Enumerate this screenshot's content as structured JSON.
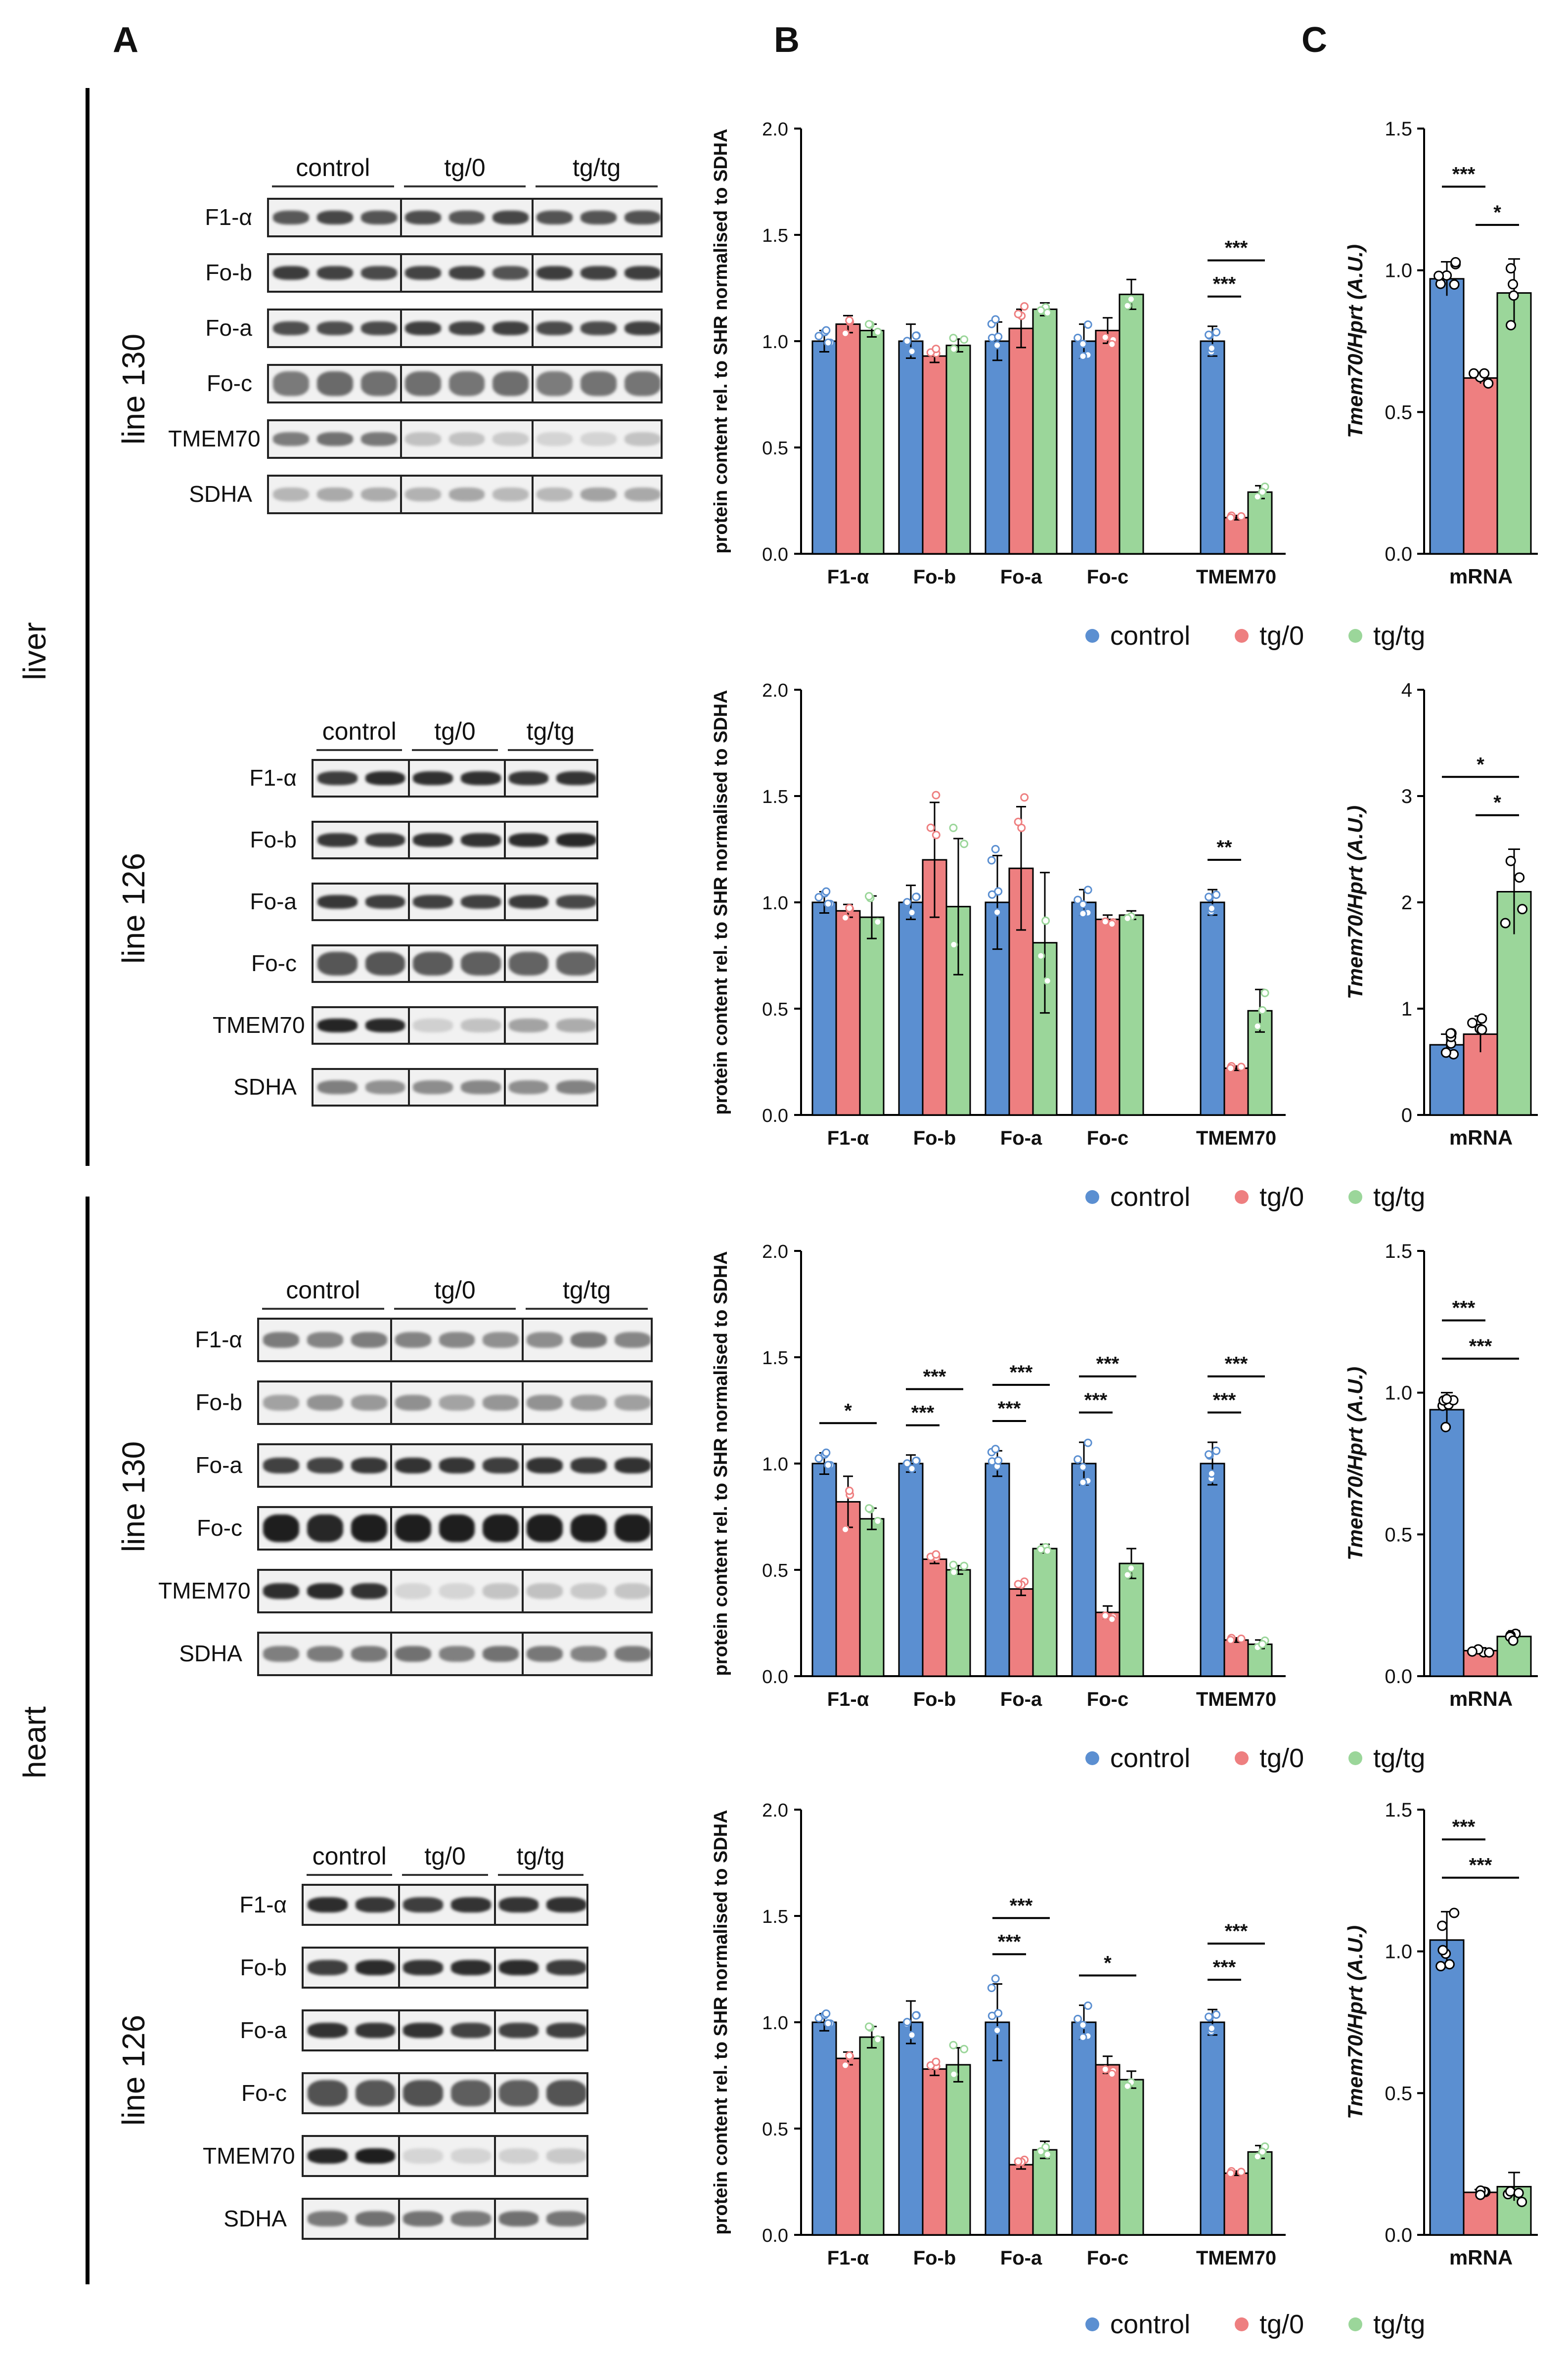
{
  "panels": {
    "A": "A",
    "B": "B",
    "C": "C"
  },
  "tissues": {
    "liver": "liver",
    "heart": "heart"
  },
  "colors": {
    "control": "#5b8fd1",
    "tg0": "#ee7f80",
    "tgtg": "#9bd69a",
    "axis": "#000000"
  },
  "legend": {
    "control": "control",
    "tg0": "tg/0",
    "tgtg": "tg/tg"
  },
  "blots": [
    {
      "line": "line 130",
      "groups": [
        "control",
        "tg/0",
        "tg/tg"
      ],
      "rows": [
        "F1-α",
        "Fo-b",
        "Fo-a",
        "Fo-c",
        "TMEM70",
        "SDHA"
      ]
    },
    {
      "line": "line 126",
      "groups": [
        "control",
        "tg/0",
        "tg/tg"
      ],
      "rows": [
        "F1-α",
        "Fo-b",
        "Fo-a",
        "Fo-c",
        "TMEM70",
        "SDHA"
      ]
    },
    {
      "line": "line 130",
      "groups": [
        "control",
        "tg/0",
        "tg/tg"
      ],
      "rows": [
        "F1-α",
        "Fo-b",
        "Fo-a",
        "Fo-c",
        "TMEM70",
        "SDHA"
      ]
    },
    {
      "line": "line 126",
      "groups": [
        "control",
        "tg/0",
        "tg/tg"
      ],
      "rows": [
        "F1-α",
        "Fo-b",
        "Fo-a",
        "Fo-c",
        "TMEM70",
        "SDHA"
      ]
    }
  ],
  "chart_data": [
    {
      "id": "B1",
      "type": "bar",
      "ylabel": "protein content rel. to SHR normalised to SDHA",
      "ylim": [
        0,
        2.0
      ],
      "yticks": [
        "0.0",
        "0.5",
        "1.0",
        "1.5",
        "2.0"
      ],
      "categories": [
        "F1-α",
        "Fo-b",
        "Fo-a",
        "Fo-c",
        "TMEM70"
      ],
      "series": [
        {
          "name": "control",
          "values": [
            1.0,
            1.0,
            1.0,
            1.0,
            1.0
          ],
          "errors": [
            0.05,
            0.08,
            0.09,
            0.08,
            0.07
          ]
        },
        {
          "name": "tg/0",
          "values": [
            1.08,
            0.93,
            1.06,
            1.05,
            0.17
          ],
          "errors": [
            0.04,
            0.03,
            0.09,
            0.06,
            0.01
          ]
        },
        {
          "name": "tg/tg",
          "values": [
            1.05,
            0.98,
            1.15,
            1.22,
            0.29
          ],
          "errors": [
            0.03,
            0.03,
            0.03,
            0.07,
            0.03
          ]
        }
      ],
      "significance": [
        {
          "label": "***",
          "category": 4,
          "from": "control",
          "to": "tg/0"
        },
        {
          "label": "***",
          "category": 4,
          "from": "control",
          "to": "tg/tg"
        }
      ]
    },
    {
      "id": "B2",
      "type": "bar",
      "ylabel": "protein content rel. to SHR normalised to SDHA",
      "ylim": [
        0,
        2.0
      ],
      "yticks": [
        "0.0",
        "0.5",
        "1.0",
        "1.5",
        "2.0"
      ],
      "categories": [
        "F1-α",
        "Fo-b",
        "Fo-a",
        "Fo-c",
        "TMEM70"
      ],
      "series": [
        {
          "name": "control",
          "values": [
            1.0,
            1.0,
            1.0,
            1.0,
            1.0
          ],
          "errors": [
            0.05,
            0.08,
            0.22,
            0.06,
            0.06
          ]
        },
        {
          "name": "tg/0",
          "values": [
            0.96,
            1.2,
            1.16,
            0.92,
            0.22
          ],
          "errors": [
            0.03,
            0.27,
            0.29,
            0.02,
            0.01
          ]
        },
        {
          "name": "tg/tg",
          "values": [
            0.93,
            0.98,
            0.81,
            0.94,
            0.49
          ],
          "errors": [
            0.1,
            0.32,
            0.33,
            0.02,
            0.1
          ]
        }
      ],
      "significance": [
        {
          "label": "**",
          "category": 4,
          "from": "control",
          "to": "tg/0"
        }
      ]
    },
    {
      "id": "B3",
      "type": "bar",
      "ylabel": "protein content rel. to SHR normalised to SDHA",
      "ylim": [
        0,
        2.0
      ],
      "yticks": [
        "0.0",
        "0.5",
        "1.0",
        "1.5",
        "2.0"
      ],
      "categories": [
        "F1-α",
        "Fo-b",
        "Fo-a",
        "Fo-c",
        "TMEM70"
      ],
      "series": [
        {
          "name": "control",
          "values": [
            1.0,
            1.0,
            1.0,
            1.0,
            1.0
          ],
          "errors": [
            0.05,
            0.04,
            0.06,
            0.1,
            0.1
          ]
        },
        {
          "name": "tg/0",
          "values": [
            0.82,
            0.55,
            0.41,
            0.3,
            0.17
          ],
          "errors": [
            0.12,
            0.02,
            0.03,
            0.03,
            0.01
          ]
        },
        {
          "name": "tg/tg",
          "values": [
            0.74,
            0.5,
            0.6,
            0.53,
            0.15
          ],
          "errors": [
            0.05,
            0.02,
            0.02,
            0.07,
            0.02
          ]
        }
      ],
      "significance": [
        {
          "label": "*",
          "category": 0,
          "from": "control",
          "to": "tg/tg"
        },
        {
          "label": "***",
          "category": 1,
          "from": "control",
          "to": "tg/0"
        },
        {
          "label": "***",
          "category": 1,
          "from": "control",
          "to": "tg/tg"
        },
        {
          "label": "***",
          "category": 2,
          "from": "control",
          "to": "tg/0"
        },
        {
          "label": "***",
          "category": 2,
          "from": "control",
          "to": "tg/tg"
        },
        {
          "label": "***",
          "category": 3,
          "from": "control",
          "to": "tg/0"
        },
        {
          "label": "***",
          "category": 3,
          "from": "control",
          "to": "tg/tg"
        },
        {
          "label": "***",
          "category": 4,
          "from": "control",
          "to": "tg/0"
        },
        {
          "label": "***",
          "category": 4,
          "from": "control",
          "to": "tg/tg"
        }
      ]
    },
    {
      "id": "B4",
      "type": "bar",
      "ylabel": "protein content rel. to SHR normalised to SDHA",
      "ylim": [
        0,
        2.0
      ],
      "yticks": [
        "0.0",
        "0.5",
        "1.0",
        "1.5",
        "2.0"
      ],
      "categories": [
        "F1-α",
        "Fo-b",
        "Fo-a",
        "Fo-c",
        "TMEM70"
      ],
      "series": [
        {
          "name": "control",
          "values": [
            1.0,
            1.0,
            1.0,
            1.0,
            1.0
          ],
          "errors": [
            0.04,
            0.1,
            0.18,
            0.08,
            0.06
          ]
        },
        {
          "name": "tg/0",
          "values": [
            0.83,
            0.78,
            0.33,
            0.8,
            0.29
          ],
          "errors": [
            0.03,
            0.03,
            0.02,
            0.04,
            0.01
          ]
        },
        {
          "name": "tg/tg",
          "values": [
            0.93,
            0.8,
            0.4,
            0.73,
            0.39
          ],
          "errors": [
            0.05,
            0.08,
            0.04,
            0.04,
            0.03
          ]
        }
      ],
      "significance": [
        {
          "label": "***",
          "category": 2,
          "from": "control",
          "to": "tg/0"
        },
        {
          "label": "***",
          "category": 2,
          "from": "control",
          "to": "tg/tg"
        },
        {
          "label": "*",
          "category": 3,
          "from": "control",
          "to": "tg/tg"
        },
        {
          "label": "***",
          "category": 4,
          "from": "control",
          "to": "tg/0"
        },
        {
          "label": "***",
          "category": 4,
          "from": "control",
          "to": "tg/tg"
        }
      ]
    },
    {
      "id": "C1",
      "type": "bar",
      "ylabel": "Tmem70/Hprt (A.U.)",
      "xlabel": "mRNA",
      "ylim": [
        0,
        1.5
      ],
      "yticks": [
        "0.0",
        "0.5",
        "1.0",
        "1.5"
      ],
      "categories": [
        "control",
        "tg/0",
        "tg/tg"
      ],
      "values": [
        0.97,
        0.62,
        0.92
      ],
      "errors": [
        0.06,
        0.02,
        0.12
      ],
      "significance": [
        {
          "label": "***",
          "from": 0,
          "to": 1
        },
        {
          "label": "*",
          "from": 1,
          "to": 2
        }
      ]
    },
    {
      "id": "C2",
      "type": "bar",
      "ylabel": "Tmem70/Hprt (A.U.)",
      "xlabel": "mRNA",
      "ylim": [
        0,
        4
      ],
      "yticks": [
        "0",
        "1",
        "2",
        "3",
        "4"
      ],
      "categories": [
        "control",
        "tg/0",
        "tg/tg"
      ],
      "values": [
        0.66,
        0.76,
        2.1
      ],
      "errors": [
        0.1,
        0.17,
        0.4
      ],
      "significance": [
        {
          "label": "*",
          "from": 0,
          "to": 2
        },
        {
          "label": "*",
          "from": 1,
          "to": 2
        }
      ]
    },
    {
      "id": "C3",
      "type": "bar",
      "ylabel": "Tmem70/Hprt (A.U.)",
      "xlabel": "mRNA",
      "ylim": [
        0,
        1.5
      ],
      "yticks": [
        "0.0",
        "0.5",
        "1.0",
        "1.5"
      ],
      "categories": [
        "control",
        "tg/0",
        "tg/tg"
      ],
      "values": [
        0.94,
        0.09,
        0.14
      ],
      "errors": [
        0.06,
        0.01,
        0.02
      ],
      "significance": [
        {
          "label": "***",
          "from": 0,
          "to": 1
        },
        {
          "label": "***",
          "from": 0,
          "to": 2
        }
      ]
    },
    {
      "id": "C4",
      "type": "bar",
      "ylabel": "Tmem70/Hprt (A.U.)",
      "xlabel": "mRNA",
      "ylim": [
        0,
        1.5
      ],
      "yticks": [
        "0.0",
        "0.5",
        "1.0",
        "1.5"
      ],
      "categories": [
        "control",
        "tg/0",
        "tg/tg"
      ],
      "values": [
        1.04,
        0.15,
        0.17
      ],
      "errors": [
        0.1,
        0.01,
        0.05
      ],
      "significance": [
        {
          "label": "***",
          "from": 0,
          "to": 1
        },
        {
          "label": "***",
          "from": 0,
          "to": 2
        }
      ]
    }
  ]
}
